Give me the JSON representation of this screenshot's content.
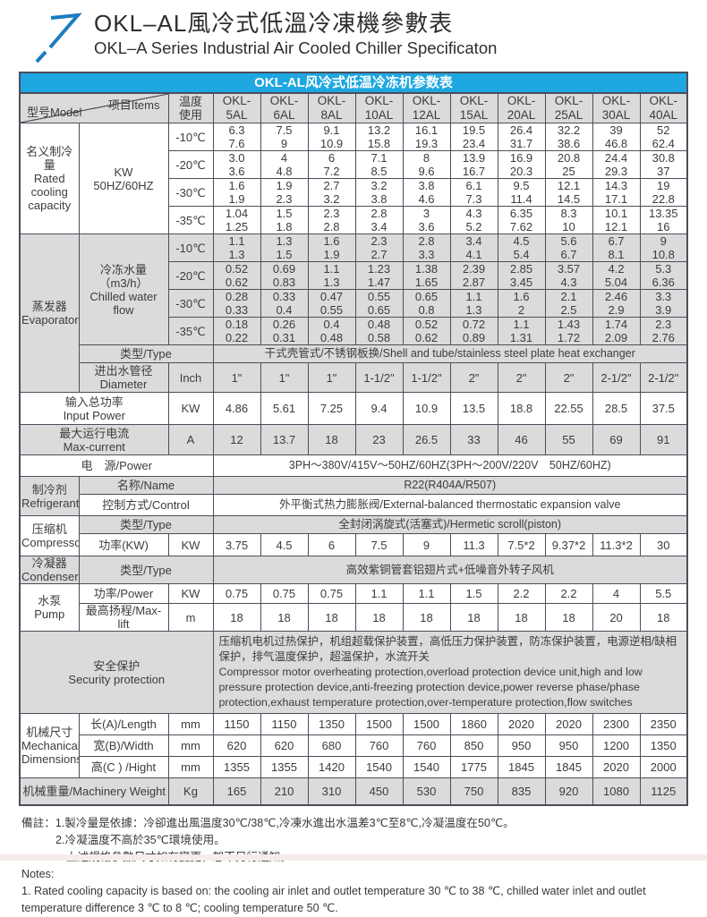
{
  "header": {
    "title_zh": "OKL–AL風冷式低溫冷凍機參數表",
    "title_en": "OKL–A Series Industrial Air Cooled Chiller Specificaton"
  },
  "banner_title": "OKL-AL风冷式低温冷冻机参数表",
  "colors": {
    "banner_blue": "#1ea7e0",
    "logo_blue": "#1b7cc0",
    "row_gray": "#dbdbdb",
    "border": "#4d4d5c"
  },
  "corner": {
    "model": "型号Model",
    "items": "项目Items",
    "temp": [
      "温度",
      "使用"
    ]
  },
  "models": [
    [
      "OKL-",
      "5AL"
    ],
    [
      "OKL-",
      "6AL"
    ],
    [
      "OKL-",
      "8AL"
    ],
    [
      "OKL-",
      "10AL"
    ],
    [
      "OKL-",
      "12AL"
    ],
    [
      "OKL-",
      "15AL"
    ],
    [
      "OKL-",
      "20AL"
    ],
    [
      "OKL-",
      "25AL"
    ],
    [
      "OKL-",
      "30AL"
    ],
    [
      "OKL-",
      "40AL"
    ]
  ],
  "rated": {
    "label": [
      "名义制冷量",
      "Rated",
      "cooling",
      "capacity"
    ],
    "unit": [
      "KW",
      "50HZ/60HZ"
    ],
    "rows": [
      {
        "temp": "-10℃",
        "hz50": [
          "6.3",
          "7.5",
          "9.1",
          "13.2",
          "16.1",
          "19.5",
          "26.4",
          "32.2",
          "39",
          "52"
        ],
        "hz60": [
          "7.6",
          "9",
          "10.9",
          "15.8",
          "19.3",
          "23.4",
          "31.7",
          "38.6",
          "46.8",
          "62.4"
        ]
      },
      {
        "temp": "-20℃",
        "hz50": [
          "3.0",
          "4",
          "6",
          "7.1",
          "8",
          "13.9",
          "16.9",
          "20.8",
          "24.4",
          "30.8"
        ],
        "hz60": [
          "3.6",
          "4.8",
          "7.2",
          "8.5",
          "9.6",
          "16.7",
          "20.3",
          "25",
          "29.3",
          "37"
        ]
      },
      {
        "temp": "-30℃",
        "hz50": [
          "1.6",
          "1.9",
          "2.7",
          "3.2",
          "3.8",
          "6.1",
          "9.5",
          "12.1",
          "14.3",
          "19"
        ],
        "hz60": [
          "1.9",
          "2.3",
          "3.2",
          "3.8",
          "4.6",
          "7.3",
          "11.4",
          "14.5",
          "17.1",
          "22.8"
        ]
      },
      {
        "temp": "-35℃",
        "hz50": [
          "1.04",
          "1.5",
          "2.3",
          "2.8",
          "3",
          "4.3",
          "6.35",
          "8.3",
          "10.1",
          "13.35"
        ],
        "hz60": [
          "1.25",
          "1.8",
          "2.8",
          "3.4",
          "3.6",
          "5.2",
          "7.62",
          "10",
          "12.1",
          "16"
        ]
      }
    ]
  },
  "evaporator": {
    "label": [
      "蒸发器",
      "Evaporator"
    ],
    "flow_label": [
      "冷冻水量（m3/h）",
      "Chilled water flow"
    ],
    "rows": [
      {
        "temp": "-10℃",
        "hz50": [
          "1.1",
          "1.3",
          "1.6",
          "2.3",
          "2.8",
          "3.4",
          "4.5",
          "5.6",
          "6.7",
          "9"
        ],
        "hz60": [
          "1.3",
          "1.5",
          "1.9",
          "2.7",
          "3.3",
          "4.1",
          "5.4",
          "6.7",
          "8.1",
          "10.8"
        ]
      },
      {
        "temp": "-20℃",
        "hz50": [
          "0.52",
          "0.69",
          "1.1",
          "1.23",
          "1.38",
          "2.39",
          "2.85",
          "3.57",
          "4.2",
          "5.3"
        ],
        "hz60": [
          "0.62",
          "0.83",
          "1.3",
          "1.47",
          "1.65",
          "2.87",
          "3.45",
          "4.3",
          "5.04",
          "6.36"
        ]
      },
      {
        "temp": "-30℃",
        "hz50": [
          "0.28",
          "0.33",
          "0.47",
          "0.55",
          "0.65",
          "1.1",
          "1.6",
          "2.1",
          "2.46",
          "3.3"
        ],
        "hz60": [
          "0.33",
          "0.4",
          "0.55",
          "0.65",
          "0.8",
          "1.3",
          "2",
          "2.5",
          "2.9",
          "3.9"
        ]
      },
      {
        "temp": "-35℃",
        "hz50": [
          "0.18",
          "0.26",
          "0.4",
          "0.48",
          "0.52",
          "0.72",
          "1.1",
          "1.43",
          "1.74",
          "2.3"
        ],
        "hz60": [
          "0.22",
          "0.31",
          "0.48",
          "0.58",
          "0.62",
          "0.89",
          "1.31",
          "1.72",
          "2.09",
          "2.76"
        ]
      }
    ],
    "type_label": "类型/Type",
    "type_value": "干式壳管式/不锈钢板换/Shell and tube/stainless steel plate heat exchanger",
    "diameter_label": [
      "进出水管径",
      "Diameter"
    ],
    "diameter_unit": "Inch",
    "diameter_values": [
      "1\"",
      "1\"",
      "1\"",
      "1-1/2\"",
      "1-1/2\"",
      "2\"",
      "2\"",
      "2\"",
      "2-1/2\"",
      "2-1/2\""
    ]
  },
  "input_power": {
    "label": [
      "输入总功率",
      "Input Power"
    ],
    "unit": "KW",
    "values": [
      "4.86",
      "5.61",
      "7.25",
      "9.4",
      "10.9",
      "13.5",
      "18.8",
      "22.55",
      "28.5",
      "37.5"
    ]
  },
  "max_current": {
    "label": [
      "最大运行电流",
      "Max-current"
    ],
    "unit": "A",
    "values": [
      "12",
      "13.7",
      "18",
      "23",
      "26.5",
      "33",
      "46",
      "55",
      "69",
      "91"
    ]
  },
  "power_supply": {
    "label": "电　源/Power",
    "value": "3PH～380V/415V～50HZ/60HZ(3PH～200V/220V　50HZ/60HZ)"
  },
  "refrigerant": {
    "label": [
      "制冷剂",
      "Refrigerant"
    ],
    "name_label": "名称/Name",
    "name_value": "R22(R404A/R507)",
    "control_label": "控制方式/Control",
    "control_value": "外平衡式热力膨胀阀/External-balanced thermostatic expansion valve"
  },
  "compressor": {
    "label": [
      "压缩机",
      "Compressor"
    ],
    "type_label": "类型/Type",
    "type_value": "全封闭涡旋式(活塞式)/Hermetic scroll(piston)",
    "power_label": "功率(KW)",
    "power_unit": "KW",
    "power_values": [
      "3.75",
      "4.5",
      "6",
      "7.5",
      "9",
      "11.3",
      "7.5*2",
      "9.37*2",
      "11.3*2",
      "30"
    ]
  },
  "condenser": {
    "label": [
      "冷凝器",
      "Condenser"
    ],
    "type_label": "类型/Type",
    "type_value": "高效紫铜管套铝翅片式+低噪音外转子风机"
  },
  "pump": {
    "label": [
      "水泵",
      "Pump"
    ],
    "power_label": "功率/Power",
    "power_unit": "KW",
    "power_values": [
      "0.75",
      "0.75",
      "0.75",
      "1.1",
      "1.1",
      "1.5",
      "2.2",
      "2.2",
      "4",
      "5.5"
    ],
    "lift_label": "最高扬程/Max-lift",
    "lift_unit": "m",
    "lift_values": [
      "18",
      "18",
      "18",
      "18",
      "18",
      "18",
      "18",
      "18",
      "20",
      "18"
    ]
  },
  "security": {
    "label": [
      "安全保护",
      "Security protection"
    ],
    "zh": "压缩机电机过热保护，机组超载保护装置，高低压力保护装置，防冻保护装置，电源逆相/缺相保护，排气温度保护，超温保护，水流开关",
    "en": " Compressor motor overheating protection,overload protection device unit,high and low pressure protection device,anti-freezing protection device,power reverse phase/phase protection,exhaust temperature protection,over-temperature protection,flow switches"
  },
  "mechanical": {
    "label": [
      "机械尺寸",
      "Mechanical",
      "Dimensions"
    ],
    "rows": [
      {
        "item": "长(A)/Length",
        "unit": "mm",
        "values": [
          "1150",
          "1150",
          "1350",
          "1500",
          "1500",
          "1860",
          "2020",
          "2020",
          "2300",
          "2350"
        ]
      },
      {
        "item": "宽(B)/Width",
        "unit": "mm",
        "values": [
          "620",
          "620",
          "680",
          "760",
          "760",
          "850",
          "950",
          "950",
          "1200",
          "1350"
        ]
      },
      {
        "item": "高(C ) /Hight",
        "unit": "mm",
        "values": [
          "1355",
          "1355",
          "1420",
          "1540",
          "1540",
          "1775",
          "1845",
          "1845",
          "2020",
          "2000"
        ]
      }
    ]
  },
  "weight": {
    "label": "机械重量/Machinery Weight",
    "unit": "Kg",
    "values": [
      "165",
      "210",
      "310",
      "450",
      "530",
      "750",
      "835",
      "920",
      "1080",
      "1125"
    ]
  },
  "notes": {
    "line1": "備註：1.製冷量是依據：冷卻進出風溫度30℃/38℃,冷凍水進出水溫差3℃至8℃,冷凝溫度在50℃。",
    "line2": "2.冷凝溫度不高於35℃環境使用。",
    "line3": "上述規格參數尺寸如有變更，恕不另行通知。",
    "line4": "Notes:",
    "line5": "1. Rated cooling capacity is based on: the cooling air inlet and outlet temperature 30 ℃ to 38 ℃, chilled water inlet and outlet temperature difference 3 ℃ to 8 ℃; cooling temperature 50 ℃."
  }
}
